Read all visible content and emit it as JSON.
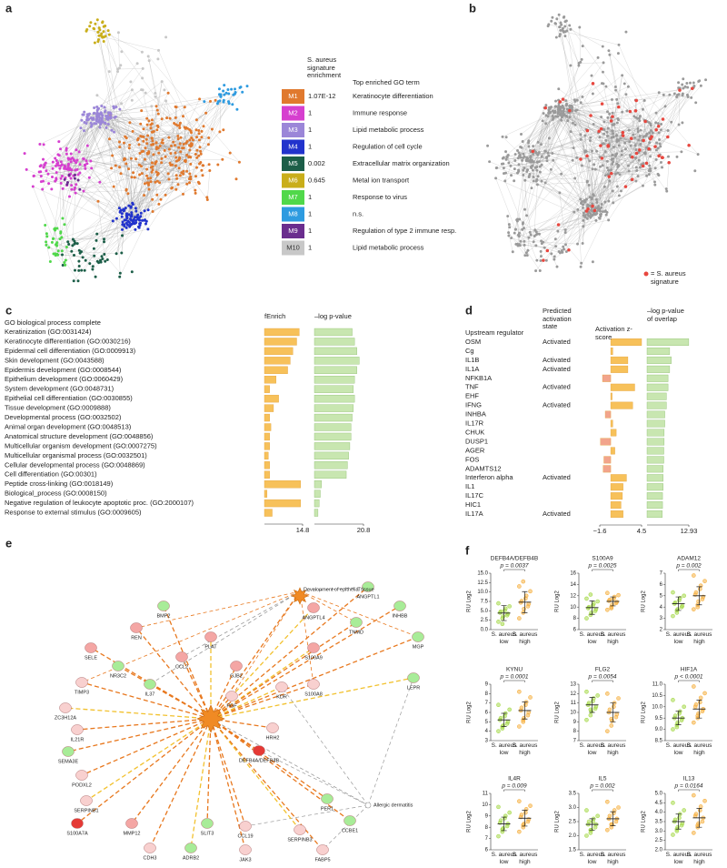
{
  "panel_labels": [
    "a",
    "b",
    "c",
    "d",
    "e",
    "f"
  ],
  "modules": {
    "header_enrichment": "S. aureus signature enrichment",
    "header_term": "Top enriched GO term",
    "rows": [
      {
        "id": "M1",
        "enrichment": "1.07E-12",
        "term": "Keratinocyte differentiation",
        "color": "#e0792e"
      },
      {
        "id": "M2",
        "enrichment": "1",
        "term": "Immune response",
        "color": "#d63fcf"
      },
      {
        "id": "M3",
        "enrichment": "1",
        "term": "Lipid metabolic process",
        "color": "#9b86d8"
      },
      {
        "id": "M4",
        "enrichment": "1",
        "term": "Regulation of cell cycle",
        "color": "#2233cc"
      },
      {
        "id": "M5",
        "enrichment": "0.002",
        "term": "Extracellular matrix organization",
        "color": "#1c5e48"
      },
      {
        "id": "M6",
        "enrichment": "0.645",
        "term": "Metal ion transport",
        "color": "#c9ae1a"
      },
      {
        "id": "M7",
        "enrichment": "1",
        "term": "Response to virus",
        "color": "#50d84a"
      },
      {
        "id": "M8",
        "enrichment": "1",
        "term": "n.s.",
        "color": "#2e9be0"
      },
      {
        "id": "M9",
        "enrichment": "1",
        "term": "Regulation of type 2 immune resp.",
        "color": "#6a2d8e"
      },
      {
        "id": "M10",
        "enrichment": "1",
        "term": "Lipid metabolic process",
        "color": "#c8c8c8"
      }
    ]
  },
  "signature_legend": {
    "label": "= S. aureus signature",
    "color": "#e8473f"
  },
  "network_e": {
    "hubs": [
      {
        "label": "Development of epithelial tissue"
      },
      {
        "label": "Allergic dermatitis"
      }
    ],
    "nodes": [
      {
        "label": "DEFB4A/DEFB4B",
        "color": "#e53935"
      },
      {
        "label": "S100A9",
        "color": "#f4a6a4"
      },
      {
        "label": "S100A8",
        "color": "#f8d0cf"
      },
      {
        "label": "SELE",
        "color": "#f4a6a4"
      },
      {
        "label": "TIMP3",
        "color": "#f8d0cf"
      },
      {
        "label": "ZC3H12A",
        "color": "#f8d0cf"
      },
      {
        "label": "IL21R",
        "color": "#f8d0cf"
      },
      {
        "label": "SEMA3E",
        "color": "#a8ec98"
      },
      {
        "label": "PODXL2",
        "color": "#f8d0cf"
      },
      {
        "label": "SERPINB1",
        "color": "#f8d0cf"
      },
      {
        "label": "S100A7A",
        "color": "#e53935"
      },
      {
        "label": "MMP12",
        "color": "#f4a6a4"
      },
      {
        "label": "CDH3",
        "color": "#f8d0cf"
      },
      {
        "label": "ADRB2",
        "color": "#a8ec98"
      },
      {
        "label": "SLIT3",
        "color": "#a8ec98"
      },
      {
        "label": "CCL19",
        "color": "#f8d0cf"
      },
      {
        "label": "JAK3",
        "color": "#f8d0cf"
      },
      {
        "label": "SERPINB3",
        "color": "#f8d0cf"
      },
      {
        "label": "FABP5",
        "color": "#f8d0cf"
      },
      {
        "label": "PER1",
        "color": "#a8ec98"
      },
      {
        "label": "CCBE1",
        "color": "#a8ec98"
      },
      {
        "label": "LEPR",
        "color": "#a8ec98"
      },
      {
        "label": "MGP",
        "color": "#a8ec98"
      },
      {
        "label": "INHBB",
        "color": "#a8ec98"
      },
      {
        "label": "ANGPTL1",
        "color": "#a8ec98"
      },
      {
        "label": "ANGPTL4",
        "color": "#f4a6a4"
      },
      {
        "label": "TNMD",
        "color": "#a8ec98"
      },
      {
        "label": "BMP2",
        "color": "#a8ec98"
      },
      {
        "label": "REN",
        "color": "#f4a6a4"
      },
      {
        "label": "PLAT",
        "color": "#f4a6a4"
      },
      {
        "label": "CCL2",
        "color": "#f4a6a4"
      },
      {
        "label": "GJB2",
        "color": "#f4a6a4"
      },
      {
        "label": "PGF",
        "color": "#f8d0cf"
      },
      {
        "label": "KDR",
        "color": "#f8d0cf"
      },
      {
        "label": "HRH2",
        "color": "#f8d0cf"
      },
      {
        "label": "NR3C2",
        "color": "#a8ec98"
      },
      {
        "label": "IL37",
        "color": "#a8ec98"
      }
    ]
  },
  "chart_data": [
    {
      "type": "hbar_table",
      "title": "GO biological process complete",
      "categories": [
        "Keratinization (GO:0031424)",
        "Keratinocyte differentiation (GO:0030216)",
        "Epidermal cell differentiation (GO:0009913)",
        "Skin development (GO:0043588)",
        "Epidermis development (GO:0008544)",
        "Epithelium development (GO:0060429)",
        "System development (GO:0048731)",
        "Epithelial cell differentiation (GO:0030855)",
        "Tissue development (GO:0009888)",
        "Developmental process (GO:0032502)",
        "Animal organ development (GO:0048513)",
        "Anatomical structure development (GO:0048856)",
        "Multicellular organism development (GO:0007275)",
        "Multicellular organismal process (GO:0032501)",
        "Cellular developmental process (GO:0048869)",
        "Cell differentiation (GO:00301)",
        "Peptide cross-linking (GO:0018149)",
        "Biological_process (GO:0008150)",
        "Negative regulation of leukocyte apoptotic proc. (GO:2000107)",
        "Response to external stimulus (GO:0009605)"
      ],
      "series": [
        {
          "name": "fEnrich",
          "color": "#f7c15a",
          "values": [
            13.5,
            12.5,
            11,
            10,
            9,
            4.5,
            2,
            5.5,
            3.5,
            2,
            2.5,
            2,
            2,
            1.5,
            2,
            2,
            14,
            1,
            14,
            3
          ],
          "xlim": [
            0,
            14.8
          ],
          "xticks": [
            14.8
          ]
        },
        {
          "name": "–log p-value",
          "color": "#c8e6b0",
          "values": [
            16,
            17,
            18,
            19,
            18,
            17,
            16.5,
            17,
            16.5,
            16,
            15.5,
            15.5,
            15,
            14.5,
            14,
            13.5,
            3,
            2.5,
            2,
            1.5
          ],
          "xlim": [
            0,
            20.8
          ],
          "xticks": [
            20.8
          ]
        }
      ]
    },
    {
      "type": "hbar_table",
      "title": "Upstream regulator",
      "categories": [
        "OSM",
        "Cg",
        "IL1B",
        "IL1A",
        "NFKB1A",
        "TNF",
        "EHF",
        "IFNG",
        "INHBA",
        "IL17R",
        "CHUK",
        "DUSP1",
        "AGER",
        "FOS",
        "ADAMTS12",
        "Interferon alpha",
        "IL1",
        "IL17C",
        "HIC1",
        "IL17A"
      ],
      "state_header": "Predicted activation state",
      "states": [
        "Activated",
        null,
        "Activated",
        "Activated",
        null,
        "Activated",
        null,
        "Activated",
        null,
        null,
        null,
        null,
        null,
        null,
        null,
        "Activated",
        null,
        null,
        null,
        "Activated"
      ],
      "series": [
        {
          "name": "Activation z-score",
          "color": "#f7c15a",
          "negative_color": "#f2a48c",
          "values": [
            4.5,
            0.3,
            2.5,
            2.5,
            -1.2,
            3.5,
            0.2,
            3.2,
            -0.8,
            0.3,
            0.8,
            -1.5,
            0.6,
            -1.0,
            -1.1,
            2.3,
            1.8,
            1.7,
            1.5,
            1.8
          ],
          "xlim": [
            -1.6,
            4.5
          ],
          "xticks": [
            {
              "value": -1.6,
              "label": "−1.6"
            },
            4.5
          ]
        },
        {
          "name": "–log p-value of overlap",
          "color": "#c8e6b0",
          "values": [
            12.9,
            7,
            7.5,
            7,
            6.5,
            6.5,
            6,
            6,
            5.5,
            5.5,
            5.3,
            5.3,
            5.2,
            5.2,
            5,
            5,
            5,
            4.8,
            4.8,
            4.7
          ],
          "xlim": [
            0,
            12.93
          ],
          "xticks": [
            12.93
          ]
        }
      ]
    },
    {
      "type": "strip",
      "title": "DEFB4A/DEFB4B",
      "p_label": "p = 0.0037",
      "ylabel": "RU Log2",
      "categories": [
        "S. aureus low",
        "S. aureus high"
      ],
      "ylim": [
        0,
        15
      ],
      "yticks": [
        {
          "value": 0,
          "label": "0.0"
        },
        2.5,
        {
          "value": 5,
          "label": "5.0"
        },
        7.5,
        {
          "value": 10,
          "label": "10.0"
        },
        12.5,
        {
          "value": 15,
          "label": "15.0"
        }
      ],
      "series": [
        {
          "color": "#a6d94a",
          "values": [
            2.1,
            3.0,
            3.5,
            3.8,
            4.2,
            4.5,
            4.8,
            5.1,
            5.6,
            6.2,
            7.0,
            1.5
          ],
          "mean": 4.4,
          "sd": 2.0
        },
        {
          "color": "#f5b041",
          "values": [
            3.0,
            4.5,
            5.5,
            6.2,
            6.8,
            7.2,
            7.6,
            8.3,
            9.0,
            10.2,
            11.5,
            12.8
          ],
          "mean": 7.3,
          "sd": 2.8
        }
      ]
    },
    {
      "type": "strip",
      "title": "S100A9",
      "p_label": "p = 0.0025",
      "ylabel": "RU Log2",
      "categories": [
        "S. aureus low",
        "S. aureus high"
      ],
      "ylim": [
        6,
        16
      ],
      "yticks": [
        6,
        8,
        10,
        12,
        14,
        16
      ],
      "series": [
        {
          "color": "#a6d94a",
          "values": [
            8.0,
            8.6,
            9.0,
            9.3,
            9.6,
            9.8,
            10.0,
            10.3,
            10.6,
            11.0,
            11.5,
            12.2
          ],
          "mean": 9.9,
          "sd": 1.2
        },
        {
          "color": "#f5b041",
          "values": [
            9.5,
            10.0,
            10.4,
            10.7,
            10.9,
            11.1,
            11.3,
            11.5,
            11.8,
            12.1,
            12.5,
            9.8
          ],
          "mean": 11.0,
          "sd": 0.8
        }
      ]
    },
    {
      "type": "strip",
      "title": "ADAM12",
      "p_label": "p = 0.002",
      "ylabel": "RU Log2",
      "categories": [
        "S. aureus low",
        "S. aureus high"
      ],
      "ylim": [
        2,
        7
      ],
      "yticks": [
        2,
        3,
        4,
        5,
        6,
        7
      ],
      "series": [
        {
          "color": "#a6d94a",
          "values": [
            3.2,
            3.5,
            3.8,
            4.0,
            4.1,
            4.3,
            4.4,
            4.6,
            4.8,
            5.0,
            5.3,
            3.7
          ],
          "mean": 4.3,
          "sd": 0.6
        },
        {
          "color": "#f5b041",
          "values": [
            3.8,
            4.2,
            4.5,
            4.7,
            4.9,
            5.1,
            5.3,
            5.6,
            5.9,
            6.3,
            6.8,
            4.0
          ],
          "mean": 5.0,
          "sd": 0.8
        }
      ]
    },
    {
      "type": "strip",
      "title": "KYNU",
      "p_label": "p = 0.0001",
      "ylabel": "RU Log2",
      "categories": [
        "S. aureus low",
        "S. aureus high"
      ],
      "ylim": [
        3,
        9
      ],
      "yticks": [
        3,
        4,
        5,
        6,
        7,
        8,
        9
      ],
      "series": [
        {
          "color": "#a6d94a",
          "values": [
            4.0,
            4.3,
            4.6,
            4.8,
            5.0,
            5.2,
            5.4,
            5.6,
            5.9,
            6.3,
            6.8,
            4.5
          ],
          "mean": 5.2,
          "sd": 0.7
        },
        {
          "color": "#f5b041",
          "values": [
            4.5,
            5.0,
            5.4,
            5.7,
            6.0,
            6.2,
            6.5,
            6.8,
            7.1,
            7.6,
            8.2,
            5.2
          ],
          "mean": 6.2,
          "sd": 0.9
        }
      ]
    },
    {
      "type": "strip",
      "title": "FLG2",
      "p_label": "p = 0.0054",
      "ylabel": "RU Log2",
      "categories": [
        "S. aureus low",
        "S. aureus high"
      ],
      "ylim": [
        7,
        13
      ],
      "yticks": [
        7,
        8,
        9,
        10,
        11,
        12,
        13
      ],
      "series": [
        {
          "color": "#a6d94a",
          "values": [
            9.2,
            9.7,
            10.1,
            10.4,
            10.6,
            10.8,
            11.0,
            11.2,
            11.5,
            11.8,
            12.2,
            10.3
          ],
          "mean": 10.8,
          "sd": 0.8
        },
        {
          "color": "#f5b041",
          "values": [
            8.0,
            8.6,
            9.1,
            9.5,
            9.8,
            10.0,
            10.3,
            10.6,
            11.0,
            11.5,
            12.0,
            9.3
          ],
          "mean": 10.0,
          "sd": 1.0
        }
      ]
    },
    {
      "type": "strip",
      "title": "HIF1A",
      "p_label": "p < 0.0001",
      "ylabel": "RU Log2",
      "categories": [
        "S. aureus low",
        "S. aureus high"
      ],
      "ylim": [
        8.5,
        11
      ],
      "yticks": [
        8.5,
        {
          "value": 9,
          "label": "9.0"
        },
        9.5,
        {
          "value": 10,
          "label": "10.0"
        },
        10.5,
        {
          "value": 11,
          "label": "11.0"
        }
      ],
      "series": [
        {
          "color": "#a6d94a",
          "values": [
            9.0,
            9.2,
            9.3,
            9.4,
            9.5,
            9.5,
            9.6,
            9.7,
            9.8,
            10.0,
            10.3,
            9.1
          ],
          "mean": 9.5,
          "sd": 0.3
        },
        {
          "color": "#f5b041",
          "values": [
            9.3,
            9.5,
            9.7,
            9.8,
            9.9,
            10.0,
            10.1,
            10.2,
            10.4,
            10.6,
            10.9,
            9.6
          ],
          "mean": 9.9,
          "sd": 0.4
        }
      ]
    },
    {
      "type": "strip",
      "title": "IL4R",
      "p_label": "p = 0.009",
      "ylabel": "RU Log2",
      "categories": [
        "S. aureus low",
        "S. aureus high"
      ],
      "ylim": [
        6,
        11
      ],
      "yticks": [
        6,
        7,
        8,
        9,
        10,
        11
      ],
      "series": [
        {
          "color": "#a6d94a",
          "values": [
            7.2,
            7.6,
            7.9,
            8.1,
            8.3,
            8.4,
            8.6,
            8.8,
            9.0,
            9.3,
            9.8,
            7.8
          ],
          "mean": 8.3,
          "sd": 0.6
        },
        {
          "color": "#f5b041",
          "values": [
            7.6,
            8.0,
            8.3,
            8.5,
            8.7,
            8.9,
            9.1,
            9.3,
            9.6,
            9.9,
            10.3,
            8.2
          ],
          "mean": 8.8,
          "sd": 0.7
        }
      ]
    },
    {
      "type": "strip",
      "title": "IL5",
      "p_label": "p = 0.002",
      "ylabel": "RU Log2",
      "categories": [
        "S. aureus low",
        "S. aureus high"
      ],
      "ylim": [
        1.5,
        3.5
      ],
      "yticks": [
        1.5,
        {
          "value": 2,
          "label": "2.0"
        },
        2.5,
        {
          "value": 3,
          "label": "3.0"
        },
        3.5
      ],
      "series": [
        {
          "color": "#a6d94a",
          "values": [
            2.0,
            2.1,
            2.2,
            2.3,
            2.4,
            2.4,
            2.5,
            2.5,
            2.6,
            2.7,
            2.9,
            2.2
          ],
          "mean": 2.4,
          "sd": 0.2
        },
        {
          "color": "#f5b041",
          "values": [
            2.2,
            2.3,
            2.4,
            2.5,
            2.6,
            2.6,
            2.7,
            2.8,
            2.9,
            3.0,
            3.2,
            2.4
          ],
          "mean": 2.6,
          "sd": 0.25
        }
      ]
    },
    {
      "type": "strip",
      "title": "IL13",
      "p_label": "p = 0.0164",
      "ylabel": "RU Log2",
      "categories": [
        "S. aureus low",
        "S. aureus high"
      ],
      "ylim": [
        2,
        5
      ],
      "yticks": [
        {
          "value": 2,
          "label": "2.0"
        },
        2.5,
        {
          "value": 3,
          "label": "3.0"
        },
        3.5,
        {
          "value": 4,
          "label": "4.0"
        },
        4.5,
        {
          "value": 5,
          "label": "5.0"
        }
      ],
      "series": [
        {
          "color": "#a6d94a",
          "values": [
            2.8,
            3.0,
            3.2,
            3.3,
            3.4,
            3.5,
            3.6,
            3.7,
            3.9,
            4.1,
            4.5,
            3.1
          ],
          "mean": 3.5,
          "sd": 0.4
        },
        {
          "color": "#f5b041",
          "values": [
            2.9,
            3.2,
            3.4,
            3.5,
            3.7,
            3.8,
            3.9,
            4.1,
            4.3,
            4.6,
            4.9,
            3.3
          ],
          "mean": 3.7,
          "sd": 0.5
        }
      ]
    }
  ]
}
